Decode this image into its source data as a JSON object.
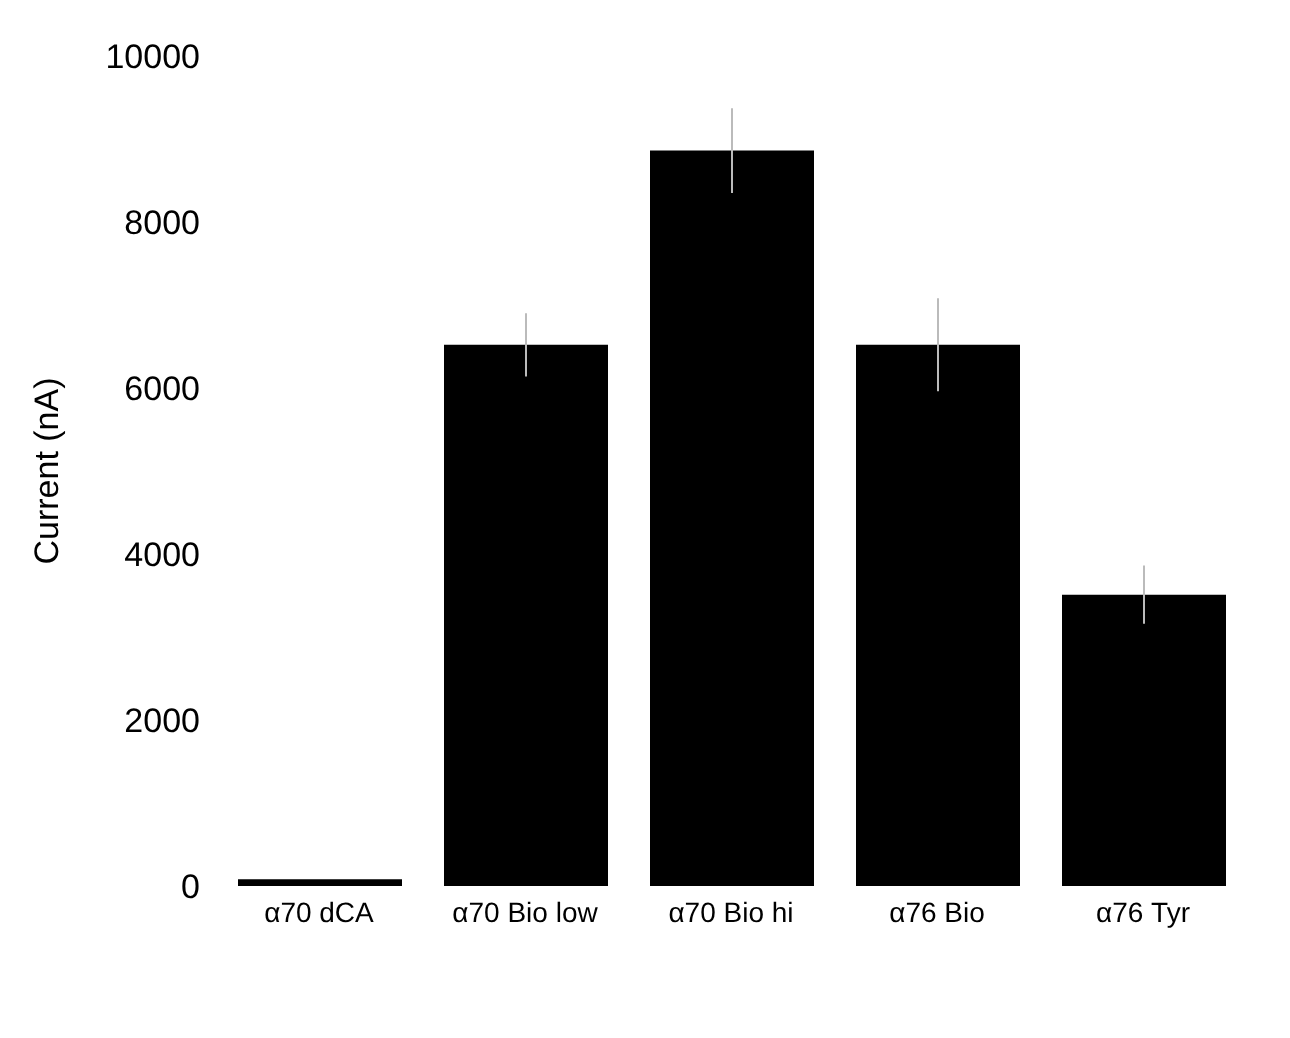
{
  "chart_data": {
    "type": "bar",
    "ylabel": "Current (nA)",
    "categories": [
      "α70 dCA",
      "α70 Bio low",
      "α70 Bio hi",
      "α76 Bio",
      "α76 Tyr"
    ],
    "values": [
      80,
      6520,
      8860,
      6520,
      3510
    ],
    "errors": [
      null,
      380,
      510,
      560,
      350
    ],
    "color": "#000000",
    "ylim": [
      0,
      10000
    ],
    "yticks": [
      0,
      2000,
      4000,
      6000,
      8000,
      10000
    ],
    "grid": false,
    "legend": false
  }
}
